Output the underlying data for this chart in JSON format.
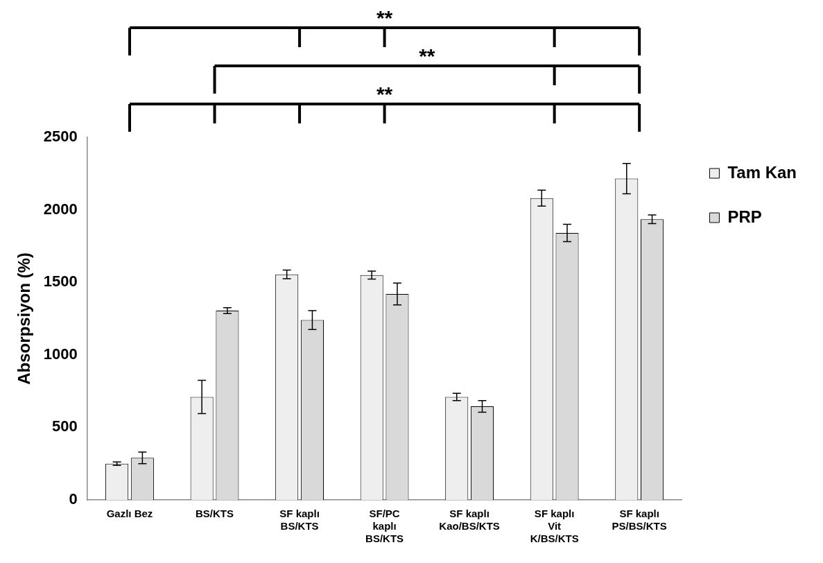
{
  "chart_data": {
    "type": "bar",
    "ylabel": "Absorpsiyon (%)",
    "categories": [
      "Gazlı Bez",
      "BS/KTS",
      "SF kaplı BS/KTS",
      "SF/PC kaplı BS/KTS",
      "SF kaplı Kao/BS/KTS",
      "SF kaplı Vit K/BS/KTS",
      "SF kaplı PS/BS/KTS"
    ],
    "series": [
      {
        "name": "Tam Kan",
        "color": "#eeeeee",
        "values": [
          250,
          710,
          1555,
          1550,
          710,
          2080,
          2215
        ],
        "errors": [
          12,
          115,
          30,
          28,
          25,
          55,
          105
        ]
      },
      {
        "name": "PRP",
        "color": "#d9d9d9",
        "values": [
          290,
          1305,
          1240,
          1420,
          645,
          1840,
          1935
        ],
        "errors": [
          40,
          20,
          65,
          75,
          40,
          60,
          30
        ]
      }
    ],
    "ylim": [
      0,
      2500
    ],
    "yticks": [
      0,
      500,
      1000,
      1500,
      2000,
      2500
    ],
    "grid": false,
    "legend": "right",
    "annotations": [
      "**",
      "**",
      "**"
    ]
  }
}
